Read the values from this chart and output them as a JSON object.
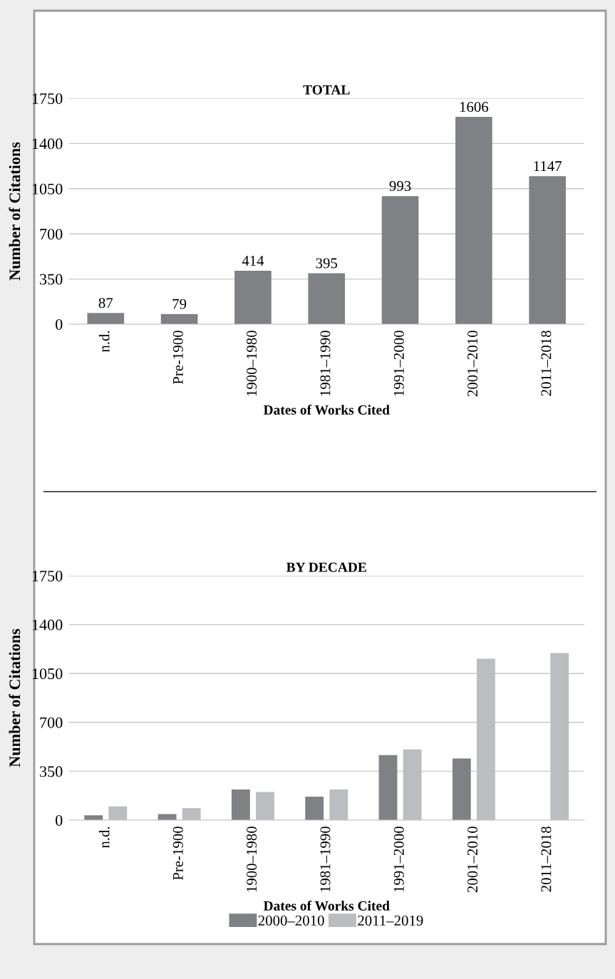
{
  "chart_data": [
    {
      "type": "bar",
      "title": "TOTAL",
      "xlabel": "Dates of Works Cited",
      "ylabel": "Number of Citations",
      "categories": [
        "n.d.",
        "Pre-1900",
        "1900–1980",
        "1981–1990",
        "1991–2000",
        "2001–2010",
        "2011–2018"
      ],
      "values": [
        87,
        79,
        414,
        395,
        993,
        1606,
        1147
      ],
      "color": "#808184",
      "data_labels": true,
      "ylim": [
        0,
        1750
      ],
      "yticks": [
        0,
        350,
        700,
        1050,
        1400,
        1750
      ],
      "grid": "y",
      "legend": false
    },
    {
      "type": "bar",
      "title": "BY DECADE",
      "xlabel": "Dates of Works Cited",
      "ylabel": "Number of Citations",
      "categories": [
        "n.d.",
        "Pre-1900",
        "1900–1980",
        "1981–1990",
        "1991–2000",
        "2001–2010",
        "2011–2018"
      ],
      "series": [
        {
          "name": "2000–2010",
          "color": "#808184",
          "values": [
            34,
            43,
            220,
            168,
            465,
            441,
            null
          ]
        },
        {
          "name": "2011–2019",
          "color": "#bcbdc0",
          "values": [
            98,
            86,
            201,
            220,
            506,
            1155,
            1196
          ]
        }
      ],
      "ylim": [
        0,
        1750
      ],
      "yticks": [
        0,
        350,
        700,
        1050,
        1400,
        1750
      ],
      "grid": "y",
      "legend": "bottom"
    }
  ]
}
